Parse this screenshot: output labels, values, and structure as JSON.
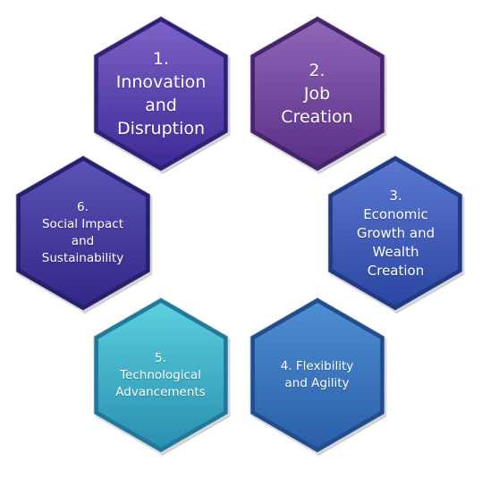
{
  "hexagons": [
    {
      "lines": [
        "1.",
        "Innovation",
        "and",
        "Disruption"
      ],
      "colors": {
        "top": "#7b62c6",
        "bottom": "#3f2a96",
        "edge": "#2f2177"
      }
    },
    {
      "lines": [
        "2.",
        "Job",
        "Creation"
      ],
      "colors": {
        "top": "#8e66b8",
        "bottom": "#5a2f86",
        "edge": "#44246a"
      }
    },
    {
      "lines": [
        "3.",
        "Economic",
        "Growth and",
        "Wealth",
        "Creation"
      ],
      "colors": {
        "top": "#5b78cf",
        "bottom": "#2b46a2",
        "edge": "#223a86"
      }
    },
    {
      "lines": [
        "4. Flexibility",
        "and Agility"
      ],
      "colors": {
        "top": "#4f8ed3",
        "bottom": "#2a5ea8",
        "edge": "#214d8c"
      }
    },
    {
      "lines": [
        "5.",
        "Technological",
        "Advancements"
      ],
      "colors": {
        "top": "#5ad0de",
        "bottom": "#2a8fb0",
        "edge": "#22789a"
      }
    },
    {
      "lines": [
        "6.",
        "Social Impact",
        "and",
        "Sustainability"
      ],
      "colors": {
        "top": "#5a52b6",
        "bottom": "#312787",
        "edge": "#261f6e"
      }
    }
  ]
}
